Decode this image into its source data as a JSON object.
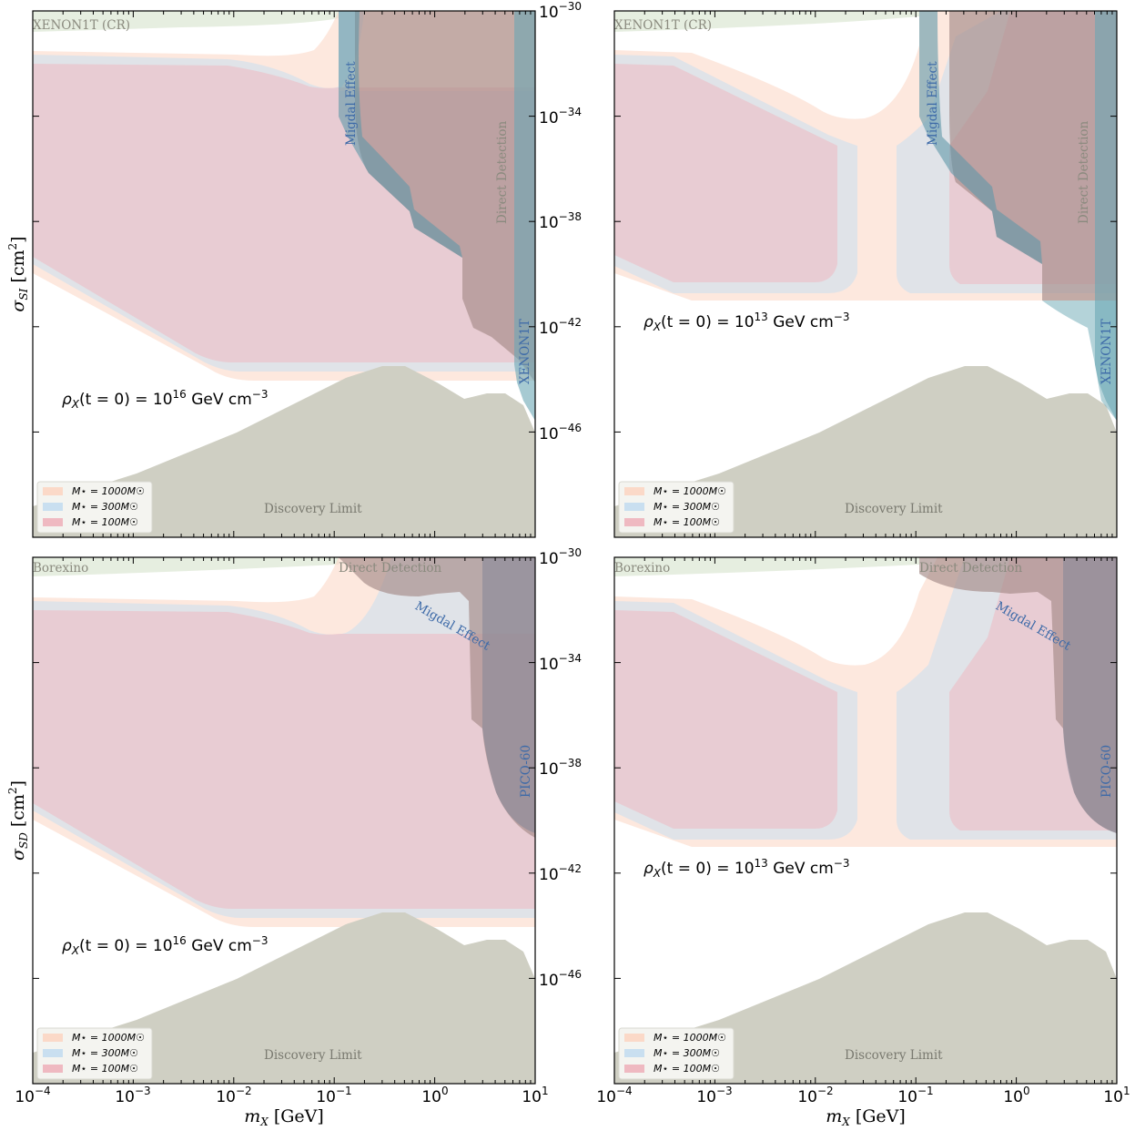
{
  "figure": {
    "layout": "2x2",
    "colors": {
      "m1000": "#fbd9c8",
      "m300": "#c9dff0",
      "m100": "#efb9c1",
      "discovery": "#cfcfc3",
      "xenon_cr": "#dde8d6",
      "borexino": "#dde8d6",
      "direct_detection": "#a48b87",
      "migdal": "#5f98a8",
      "xenon1t": "#6aa7b4",
      "pico60": "#8b8a9a",
      "label_gray": "#8a8a7e",
      "label_blue": "#3d6aa8"
    }
  },
  "chart_data": [
    {
      "type": "area",
      "panel": "top-left",
      "title": "",
      "xlabel": "m_X [GeV]",
      "ylabel": "σ_SI [cm²]",
      "xscale": "log",
      "yscale": "log",
      "xlim": [
        0.0001,
        10
      ],
      "ylim": [
        1e-50,
        1e-30
      ],
      "xticks": [
        "10^-4",
        "10^-3",
        "10^-2",
        "10^-1",
        "10^0",
        "10^1"
      ],
      "yticks": [
        "10^-30",
        "10^-34",
        "10^-38",
        "10^-42",
        "10^-46"
      ],
      "annotation": "ρ_X(t=0) = 10^16 GeV cm^-3",
      "legend": [
        "M⋆ = 1000 M☉",
        "M⋆ = 300 M☉",
        "M⋆ = 100 M☉"
      ],
      "legend_position": "lower left",
      "region_labels": [
        "XENON1T (CR)",
        "Migdal Effect",
        "Direct Detection",
        "XENON1T",
        "Discovery Limit"
      ],
      "series": [
        {
          "name": "M⋆=1000M☉ excluded",
          "x_log": [
            -4,
            -3,
            -2,
            -1.4,
            -1.1,
            -1,
            0,
            1
          ],
          "upper_log": [
            -31.8,
            -31.9,
            -32.0,
            -32.5,
            -31.0,
            -30.0,
            -30,
            -30
          ],
          "lower_log": [
            -40.8,
            -42.5,
            -44.3,
            -44.4,
            -44.4,
            -44.4,
            -44.4,
            -44.4
          ]
        },
        {
          "name": "M⋆=300M☉ excluded",
          "x_log": [
            -4,
            -3,
            -2,
            -1.3,
            -1,
            0,
            1
          ],
          "upper_log": [
            -32.3,
            -32.4,
            -32.6,
            -33.5,
            -33.0,
            -30.0,
            -30
          ],
          "lower_log": [
            -40.4,
            -42.2,
            -44.0,
            -44.1,
            -44.1,
            -44.1,
            -44.1
          ]
        },
        {
          "name": "M⋆=100M☉ excluded",
          "x_log": [
            -4,
            -3,
            -2,
            -1.3,
            -1,
            0,
            1
          ],
          "upper_log": [
            -32.8,
            -32.9,
            -33.1,
            -33.8,
            -33.8,
            -33.8,
            -33.8
          ],
          "lower_log": [
            -40.0,
            -41.9,
            -43.7,
            -43.8,
            -43.8,
            -43.8,
            -43.8
          ]
        },
        {
          "name": "Discovery Limit",
          "x_log": [
            -4,
            -3,
            -2,
            -1,
            -0.4,
            -0.3,
            0,
            0.3,
            0.7,
            0.95,
            1
          ],
          "upper_log": [
            -49.4,
            -48.5,
            -47.2,
            -45.5,
            -44.4,
            -44.5,
            -45.3,
            -45.4,
            -45.3,
            -45.8,
            -46.3
          ]
        }
      ]
    },
    {
      "type": "area",
      "panel": "top-right",
      "xlabel": "",
      "ylabel": "",
      "xscale": "log",
      "yscale": "log",
      "xlim": [
        0.0001,
        10
      ],
      "ylim": [
        1e-50,
        1e-30
      ],
      "annotation": "ρ_X(t=0) = 10^13 GeV cm^-3",
      "legend": [
        "M⋆ = 1000 M☉",
        "M⋆ = 300 M☉",
        "M⋆ = 100 M☉"
      ],
      "region_labels": [
        "XENON1T (CR)",
        "Migdal Effect",
        "Direct Detection",
        "XENON1T",
        "Discovery Limit"
      ],
      "series": [
        {
          "name": "M⋆=1000M☉ excluded",
          "note": "continuous band with dip near 10^-1.4 GeV",
          "lower_log": -41.6
        },
        {
          "name": "M⋆=300M☉ excluded",
          "note": "two lobes split at ~0.03–0.07 GeV",
          "lower_log": -41.1
        },
        {
          "name": "M⋆=100M☉ excluded",
          "note": "two lobes: 1e-4–0.025 GeV and 0.2–10 GeV",
          "upper_log_left": -35.0,
          "lower_log": -40.6
        },
        {
          "name": "Discovery Limit",
          "same_as": "top-left"
        }
      ]
    },
    {
      "type": "area",
      "panel": "bottom-left",
      "xlabel": "m_X [GeV]",
      "ylabel": "σ_SD [cm²]",
      "xscale": "log",
      "yscale": "log",
      "xlim": [
        0.0001,
        10
      ],
      "ylim": [
        1e-50,
        1e-30
      ],
      "annotation": "ρ_X(t=0) = 10^16 GeV cm^-3",
      "legend": [
        "M⋆ = 1000 M☉",
        "M⋆ = 300 M☉",
        "M⋆ = 100 M☉"
      ],
      "region_labels": [
        "Borexino",
        "Direct Detection",
        "Migdal Effect",
        "PICO-60",
        "Discovery Limit"
      ],
      "series": [
        {
          "name": "M⋆=1000M☉ excluded",
          "same_shape_as": "top-left"
        },
        {
          "name": "M⋆=300M☉ excluded",
          "same_shape_as": "top-left"
        },
        {
          "name": "M⋆=100M☉ excluded",
          "same_shape_as": "top-left"
        },
        {
          "name": "Discovery Limit",
          "same_as": "top-left"
        }
      ]
    },
    {
      "type": "area",
      "panel": "bottom-right",
      "xlabel": "m_X [GeV]",
      "ylabel": "",
      "xscale": "log",
      "yscale": "log",
      "xlim": [
        0.0001,
        10
      ],
      "ylim": [
        1e-50,
        1e-30
      ],
      "annotation": "ρ_X(t=0) = 10^13 GeV cm^-3",
      "legend": [
        "M⋆ = 1000 M☉",
        "M⋆ = 300 M☉",
        "M⋆ = 100 M☉"
      ],
      "region_labels": [
        "Borexino",
        "Direct Detection",
        "Migdal Effect",
        "PICO-60",
        "Discovery Limit"
      ],
      "series": [
        {
          "name": "M⋆=1000M☉ excluded",
          "same_shape_as": "top-right"
        },
        {
          "name": "M⋆=300M☉ excluded",
          "same_shape_as": "top-right"
        },
        {
          "name": "M⋆=100M☉ excluded",
          "same_shape_as": "top-right"
        },
        {
          "name": "Discovery Limit",
          "same_as": "top-left"
        }
      ]
    }
  ],
  "labels": {
    "x_ticks": [
      "10",
      "10",
      "10",
      "10",
      "10",
      "10"
    ],
    "x_tick_exps": [
      "−4",
      "−3",
      "−2",
      "−1",
      "0",
      "1"
    ],
    "y_ticks": [
      "10",
      "10",
      "10",
      "10",
      "10"
    ],
    "y_tick_exps": [
      "−30",
      "−34",
      "−38",
      "−42",
      "−46"
    ],
    "xlabel_var": "m",
    "xlabel_sub": "X",
    "xlabel_unit": " [GeV]",
    "ylabel_top_var": "σ",
    "ylabel_top_sub": "SI",
    "ylabel_bottom_var": "σ",
    "ylabel_bottom_sub": "SD",
    "ylabel_unit": " [cm",
    "ylabel_unit_exp": "2",
    "ylabel_unit_close": "]",
    "rho_16_prefix": "ρ",
    "rho_sub": "X",
    "rho_mid": "(t = 0) = 10",
    "rho_16_exp": "16",
    "rho_13_exp": "13",
    "rho_unit": " GeV cm",
    "rho_unit_exp": "−3",
    "legend_m1000": "M⋆ = 1000M☉",
    "legend_m300": "M⋆ = 300M☉",
    "legend_m100": "M⋆ = 100M☉",
    "xenon_cr": "XENON1T (CR)",
    "borexino": "Borexino",
    "migdal": "Migdal Effect",
    "direct_detection": "Direct Detection",
    "xenon1t": "XENON1T",
    "pico60": "PICO-60",
    "discovery": "Discovery Limit"
  }
}
